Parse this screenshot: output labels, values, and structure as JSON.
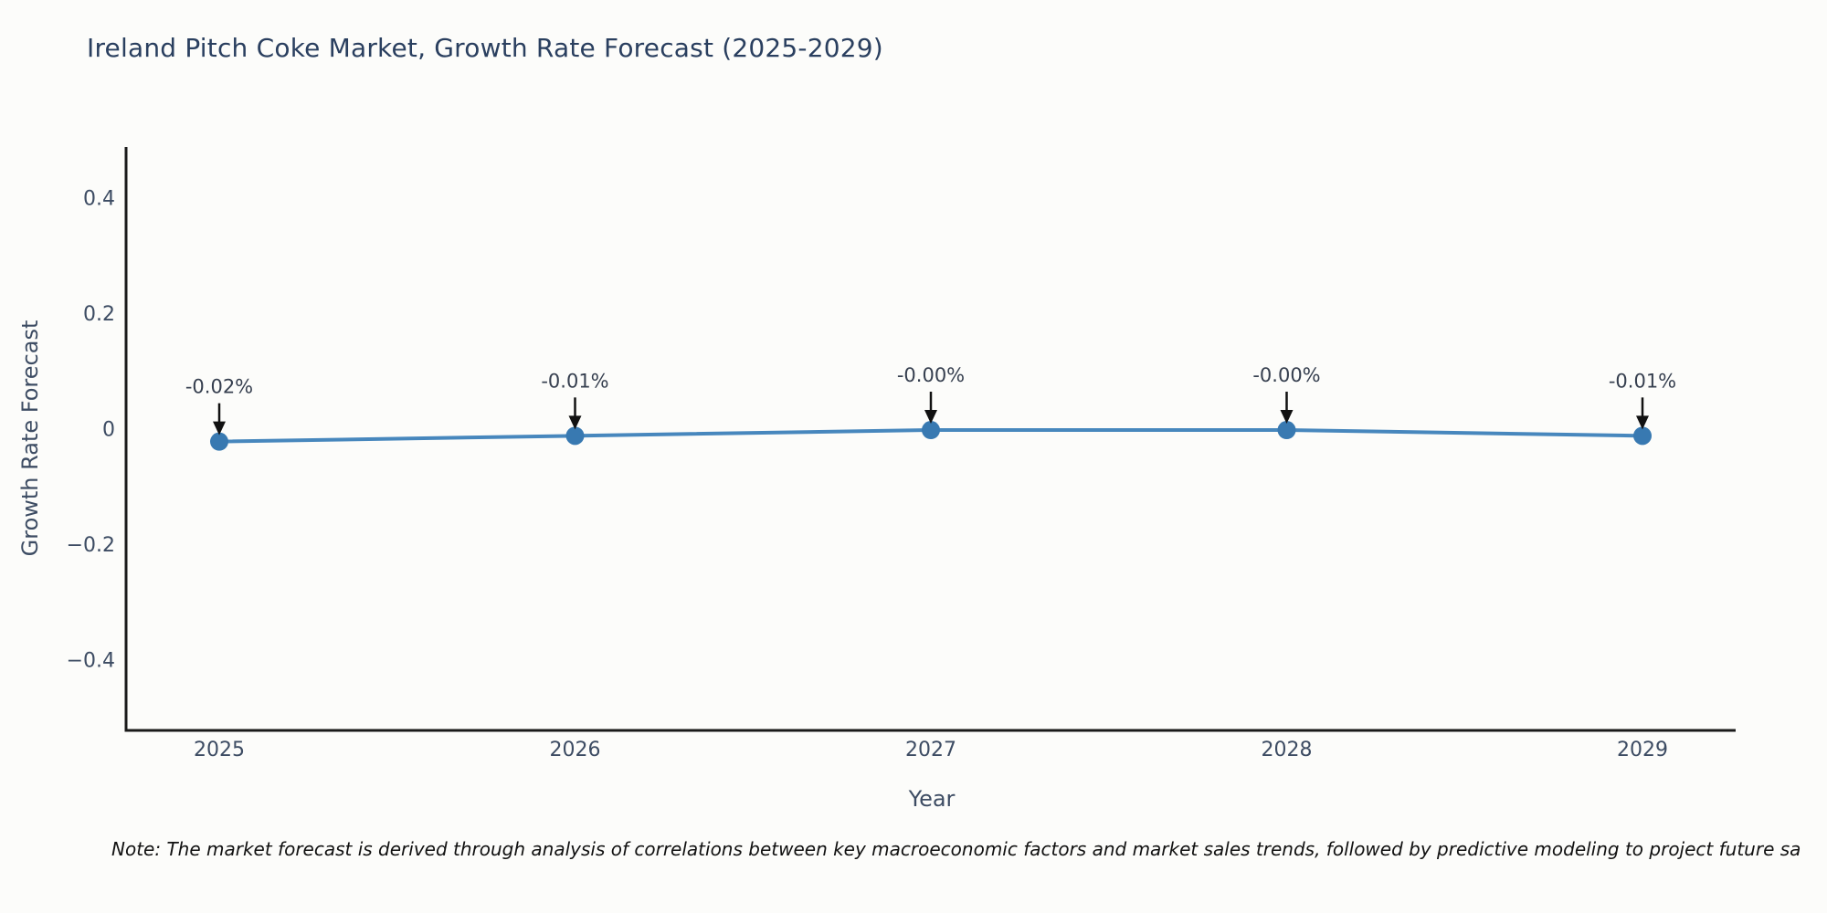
{
  "title": "Ireland Pitch Coke Market, Growth Rate Forecast (2025-2029)",
  "note": "Note: The market forecast is derived through analysis of correlations between key macroeconomic factors and market sales trends, followed by predictive modeling to project future sa",
  "colors": {
    "background": "#fcfcfa",
    "title_text": "#2a3f5f",
    "axis_line": "#1a1a1a",
    "tick_text": "#3d4c63",
    "axis_title_text": "#3d4c63",
    "annotation_text": "#363f4f",
    "annotation_arrow": "#111111",
    "line": "#4787bd",
    "marker": "#3879b1",
    "note_text": "#111111"
  },
  "chart_data": {
    "type": "line",
    "title": "Ireland Pitch Coke Market, Growth Rate Forecast (2025-2029)",
    "xlabel": "Year",
    "ylabel": "Growth Rate Forecast",
    "x": [
      "2025",
      "2026",
      "2027",
      "2028",
      "2029"
    ],
    "values": [
      -0.02,
      -0.01,
      -0.0,
      -0.0,
      -0.01
    ],
    "point_labels": [
      "-0.02%",
      "-0.01%",
      "-0.00%",
      "-0.00%",
      "-0.01%"
    ],
    "yticks": [
      0.4,
      0.2,
      0,
      -0.2,
      -0.4
    ],
    "ytick_labels": [
      "0.4",
      "0.2",
      "0",
      "−0.2",
      "−0.4"
    ],
    "ylim": [
      -0.52,
      0.49
    ],
    "grid": false,
    "legend": null,
    "marker_style": "circle",
    "annotation_arrows": true
  }
}
